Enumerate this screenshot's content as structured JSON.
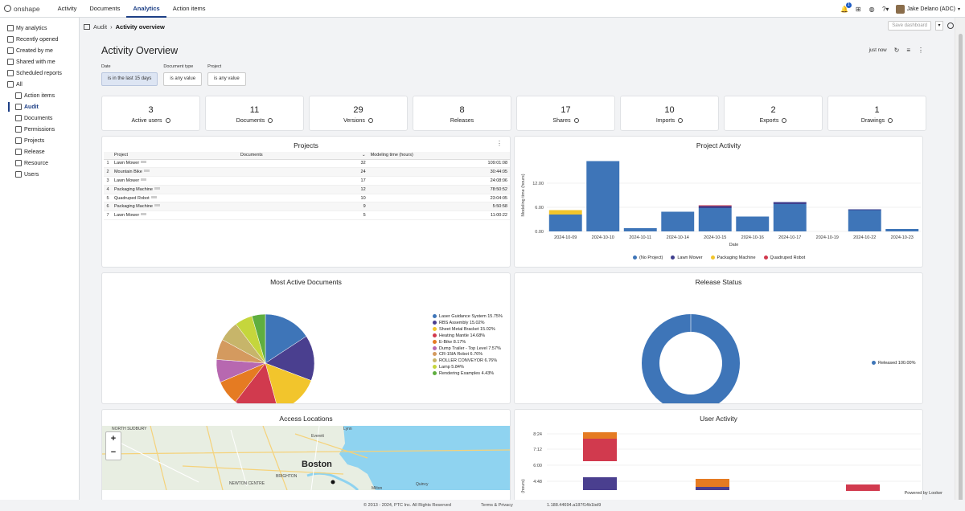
{
  "topnav": {
    "logo": "onshape",
    "items": [
      "Activity",
      "Documents",
      "Analytics",
      "Action items"
    ],
    "active": "Analytics",
    "notif_count": "1",
    "user": "Jake Delano (ADC)"
  },
  "sidebar": {
    "items": [
      {
        "label": "My analytics",
        "icon": "user-circle-icon",
        "indent": 0
      },
      {
        "label": "Recently opened",
        "icon": "clock-icon",
        "indent": 0
      },
      {
        "label": "Created by me",
        "icon": "page-icon",
        "indent": 0
      },
      {
        "label": "Shared with me",
        "icon": "share-icon",
        "indent": 0
      },
      {
        "label": "Scheduled reports",
        "icon": "calendar-icon",
        "indent": 0
      },
      {
        "label": "All",
        "icon": "grid-icon",
        "indent": 0
      },
      {
        "label": "Action items",
        "icon": "folder-icon",
        "indent": 1
      },
      {
        "label": "Audit",
        "icon": "folder-icon",
        "indent": 1,
        "active": true
      },
      {
        "label": "Documents",
        "icon": "folder-icon",
        "indent": 1
      },
      {
        "label": "Permissions",
        "icon": "folder-icon",
        "indent": 1
      },
      {
        "label": "Projects",
        "icon": "folder-icon",
        "indent": 1
      },
      {
        "label": "Release",
        "icon": "folder-icon",
        "indent": 1
      },
      {
        "label": "Resource",
        "icon": "folder-icon",
        "indent": 1
      },
      {
        "label": "Users",
        "icon": "folder-icon",
        "indent": 1
      }
    ]
  },
  "breadcrumb": {
    "parent": "Audit",
    "current": "Activity overview"
  },
  "save_dashboard": "Save dashboard",
  "title": "Activity Overview",
  "refresh_label": "just now",
  "filters": [
    {
      "label": "Date",
      "value": "is in the last 15 days",
      "selected": true
    },
    {
      "label": "Document type",
      "value": "is any value",
      "selected": false
    },
    {
      "label": "Project",
      "value": "is any value",
      "selected": false
    }
  ],
  "kpis": [
    {
      "value": "3",
      "label": "Active users",
      "info": true
    },
    {
      "value": "11",
      "label": "Documents",
      "info": true
    },
    {
      "value": "29",
      "label": "Versions",
      "info": true
    },
    {
      "value": "8",
      "label": "Releases",
      "info": false
    },
    {
      "value": "17",
      "label": "Shares",
      "info": true
    },
    {
      "value": "10",
      "label": "Imports",
      "info": true
    },
    {
      "value": "2",
      "label": "Exports",
      "info": true
    },
    {
      "value": "1",
      "label": "Drawings",
      "info": true
    }
  ],
  "projects_card": {
    "title": "Projects",
    "columns": [
      "Project",
      "Documents",
      "Modeling time (hours)"
    ],
    "rows": [
      [
        "1",
        "Lawn Mower",
        "32",
        "109:01:08"
      ],
      [
        "2",
        "Mountain Bike",
        "24",
        "30:44:05"
      ],
      [
        "3",
        "Lawn Mower",
        "17",
        "24:08:06"
      ],
      [
        "4",
        "Packaging Machine",
        "12",
        "78:50:52"
      ],
      [
        "5",
        "Quadruped Robot",
        "10",
        "23:04:05"
      ],
      [
        "6",
        "Packaging Machine",
        "9",
        "5:50:58"
      ],
      [
        "7",
        "Lawn Mower",
        "5",
        "11:00:22"
      ]
    ]
  },
  "project_activity": {
    "title": "Project Activity",
    "ylabel": "Modeling time (hours)",
    "xlabel": "Date",
    "yticks": [
      "0.00",
      "6.00",
      "12.00"
    ],
    "chart_data": {
      "type": "bar",
      "stacked": true,
      "categories": [
        "2024-10-09",
        "2024-10-10",
        "2024-10-11",
        "2024-10-14",
        "2024-10-15",
        "2024-10-16",
        "2024-10-17",
        "2024-10-19",
        "2024-10-22",
        "2024-10-23"
      ],
      "series": [
        {
          "name": "(No Project)",
          "color": "#3e75b8",
          "values": [
            4.2,
            17.5,
            0.8,
            4.9,
            5.8,
            3.7,
            6.8,
            0,
            5.3,
            0.6
          ]
        },
        {
          "name": "Lawn Mower",
          "color": "#3f3f8e",
          "values": [
            0,
            0,
            0,
            0,
            0.5,
            0,
            0.5,
            0,
            0.2,
            0
          ]
        },
        {
          "name": "Packaging Machine",
          "color": "#f2c52c",
          "values": [
            1.1,
            0,
            0,
            0,
            0,
            0,
            0,
            0,
            0,
            0
          ]
        },
        {
          "name": "Quadruped Robot",
          "color": "#d13a4e",
          "values": [
            0,
            0,
            0,
            0,
            0.2,
            0,
            0,
            0,
            0,
            0
          ]
        }
      ],
      "ylim": [
        0,
        18
      ]
    }
  },
  "most_active": {
    "title": "Most Active Documents",
    "chart_data": {
      "type": "pie",
      "labels": [
        "Laser Guidance System 15.75%",
        "RBS Assembly 15.02%",
        "Sheet Metal Bracket 15.02%",
        "Heating Mantle 14.68%",
        "E-Bike 8.17%",
        "Dump Trailer - Top Level 7.57%",
        "CR-15IA Robot 6.76%",
        "ROLLER CONVEYOR 6.76%",
        "Lamp 5.84%",
        "Rendering Examples 4.43%"
      ],
      "values": [
        15.75,
        15.02,
        15.02,
        14.68,
        8.17,
        7.57,
        6.76,
        6.76,
        5.84,
        4.43
      ],
      "colors": [
        "#3e75b8",
        "#4a3f8f",
        "#f2c52c",
        "#d13a4e",
        "#e57b22",
        "#b768b0",
        "#d49a5f",
        "#c7b56a",
        "#c5d63c",
        "#5fae3f"
      ]
    }
  },
  "release_status": {
    "title": "Release Status",
    "chart_data": {
      "type": "pie",
      "donut": true,
      "labels": [
        "Released 100.00%"
      ],
      "values": [
        100
      ],
      "colors": [
        "#3e75b8"
      ]
    }
  },
  "access": {
    "title": "Access Locations",
    "labels": [
      "NORTH SUDBURY",
      "Everett",
      "Boston",
      "BRIGHTON",
      "NEWTON CENTRE",
      "Quincy",
      "Milton",
      "Lynn"
    ],
    "zoom_in": "+",
    "zoom_out": "−"
  },
  "user_activity": {
    "title": "User Activity",
    "ylabel": "(hours)",
    "yticks": [
      "8:24",
      "7:12",
      "6:00",
      "4:48"
    ]
  },
  "footer": {
    "copyright": "© 2013 - 2024, PTC Inc. All Rights Reserved",
    "terms": "Terms & Privacy",
    "build": "1.188.44694.a187f14b1bd9",
    "powered": "Powered by Looker"
  }
}
